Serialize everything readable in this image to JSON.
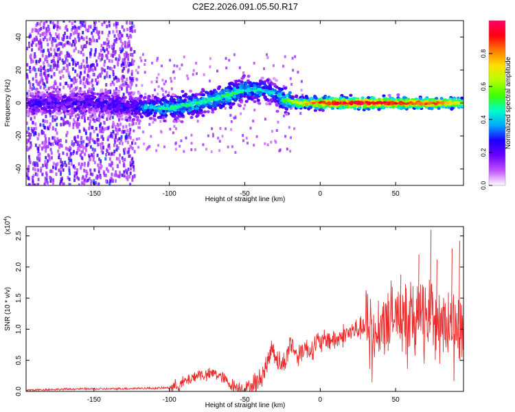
{
  "figure_title": "C2E2.2026.091.05.50.R17",
  "chart_data": [
    {
      "type": "heatmap",
      "title": "C2E2.2026.091.05.50.R17",
      "xlabel": "Height of straight line (km)",
      "ylabel": "Frequency (Hz)",
      "xlim": [
        -195,
        95
      ],
      "ylim": [
        -50,
        50
      ],
      "x_ticks": [
        -150,
        -100,
        -50,
        0,
        50
      ],
      "y_ticks": [
        -40,
        -20,
        0,
        20,
        40
      ],
      "x_tick_labels": [
        "-150",
        "-100",
        "-50",
        "0",
        "50"
      ],
      "y_tick_labels": [
        "-40",
        "-20",
        "0",
        "20",
        "40"
      ],
      "ridge": {
        "description": "Doppler frequency ridge (peak amplitude vs height)",
        "x": [
          -195,
          -150,
          -125,
          -110,
          -100,
          -80,
          -60,
          -50,
          -40,
          -30,
          -25,
          -15,
          0,
          20,
          40,
          60,
          80,
          95
        ],
        "y": [
          0,
          0,
          -2,
          -3,
          -3,
          0,
          5,
          8,
          8,
          6,
          2,
          0,
          0,
          0,
          0,
          0,
          0,
          0
        ],
        "amplitude": [
          0.22,
          0.22,
          0.25,
          0.38,
          0.42,
          0.42,
          0.45,
          0.4,
          0.38,
          0.35,
          0.45,
          0.62,
          0.82,
          0.92,
          0.88,
          0.8,
          0.78,
          0.6
        ]
      },
      "noise_region_x": [
        -195,
        -125
      ],
      "colorbar": {
        "label": "Normalized spectral amplitude",
        "range": [
          0.0,
          1.0
        ],
        "ticks": [
          0.0,
          0.2,
          0.4,
          0.6,
          0.8
        ],
        "tick_labels": [
          "0.0",
          "0.2",
          "0.4",
          "0.6",
          "0.8"
        ],
        "colors": [
          "#ffffff",
          "#c050ff",
          "#6a00ff",
          "#1a00ff",
          "#00a8ff",
          "#00ffc8",
          "#3cff00",
          "#b4ff00",
          "#ffe000",
          "#ff7a00",
          "#ff0010",
          "#ff0064"
        ]
      }
    },
    {
      "type": "line",
      "xlabel": "Height of straight line (km)",
      "ylabel": "SNR (10 * v/v)",
      "multiplier_label": "(x10",
      "multiplier_exponent": "4",
      "multiplier_close": ")",
      "xlim": [
        -195,
        95
      ],
      "ylim": [
        0,
        2.65
      ],
      "x_ticks": [
        -150,
        -100,
        -50,
        0,
        50
      ],
      "y_ticks": [
        0.0,
        0.5,
        1.0,
        1.5,
        2.0,
        2.5
      ],
      "x_tick_labels": [
        "-150",
        "-100",
        "-50",
        "0",
        "50"
      ],
      "y_tick_labels": [
        "0.0",
        "0.5",
        "1.0",
        "1.5",
        "2.0",
        "2.5"
      ],
      "color": "#ee2a2a",
      "series": [
        {
          "name": "SNR",
          "x": [
            -195,
            -180,
            -160,
            -140,
            -120,
            -110,
            -100,
            -95,
            -90,
            -85,
            -80,
            -75,
            -70,
            -65,
            -60,
            -55,
            -50,
            -45,
            -40,
            -38,
            -35,
            -32,
            -30,
            -28,
            -25,
            -22,
            -20,
            -18,
            -15,
            -12,
            -10,
            -8,
            -5,
            -2,
            0,
            5,
            10,
            15,
            20,
            25,
            30,
            35,
            40,
            45,
            50,
            55,
            60,
            65,
            70,
            72,
            75,
            80,
            85,
            90,
            93,
            95
          ],
          "y": [
            0.02,
            0.03,
            0.04,
            0.04,
            0.05,
            0.05,
            0.06,
            0.09,
            0.15,
            0.22,
            0.28,
            0.25,
            0.3,
            0.22,
            0.12,
            0.07,
            0.05,
            0.1,
            0.18,
            0.3,
            0.45,
            0.72,
            0.62,
            0.48,
            0.42,
            0.55,
            0.8,
            0.72,
            0.55,
            0.68,
            0.72,
            0.65,
            0.7,
            0.8,
            0.76,
            0.85,
            0.82,
            0.9,
            0.95,
            1.0,
            1.02,
            1.08,
            1.1,
            1.15,
            1.22,
            1.3,
            1.2,
            1.25,
            1.15,
            1.28,
            1.25,
            1.12,
            1.05,
            1.1,
            0.9,
            1.05
          ],
          "highlights": [
            {
              "x": 45,
              "y": 1.45
            },
            {
              "x": 53,
              "y": 1.88
            },
            {
              "x": 65,
              "y": 2.2
            },
            {
              "x": 73,
              "y": 2.6
            },
            {
              "x": 77,
              "y": 2.12
            },
            {
              "x": 87,
              "y": 2.3
            },
            {
              "x": 92,
              "y": 2.42
            }
          ]
        }
      ]
    }
  ]
}
